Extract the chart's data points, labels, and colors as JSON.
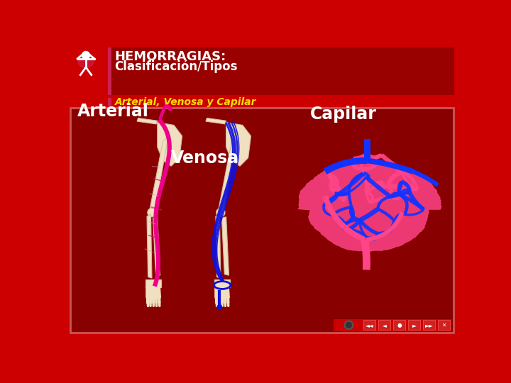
{
  "title_bold": "HEMORRAGIAS:",
  "title_sub": "Clasificación/Tipos",
  "subtitle": "Arterial, Venosa y Capilar",
  "label_arterial": "Arterial",
  "label_venosa": "Venosa",
  "label_capilar": "Capilar",
  "bg_color": "#cc0000",
  "header_bg": "#990000",
  "content_bg": "#880000",
  "title_color": "#ffffff",
  "subtitle_color": "#ffdd00",
  "label_color": "#ffffff",
  "accent_bar_color": "#cc2255",
  "arterial_color": "#ee0088",
  "venous_color": "#1111dd",
  "capillary_blue": "#1133ff",
  "capillary_red": "#ff4488",
  "bone_color": "#f0dfc0",
  "bone_edge": "#d4bfa0",
  "box_edge": "#cc5555"
}
